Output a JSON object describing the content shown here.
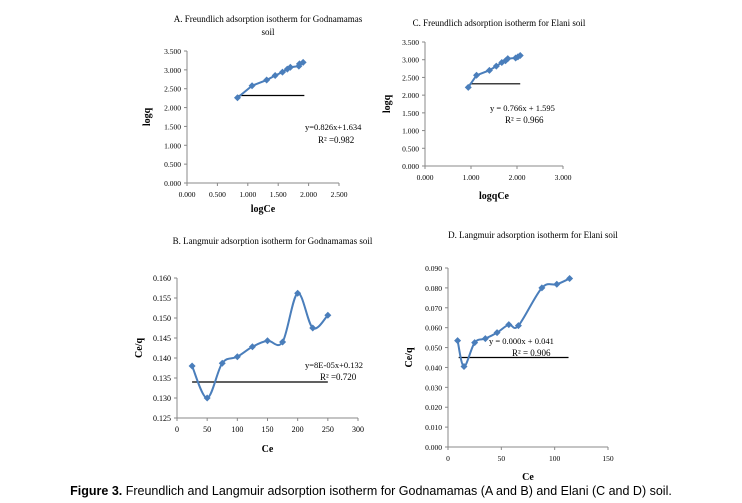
{
  "chart_data": [
    {
      "id": "A",
      "type": "line",
      "title": "A. Freundlich adsorption isotherm for Godnamamas",
      "title_line2": "soil",
      "xlabel": "logCe",
      "ylabel": "logq",
      "xlim": [
        0,
        2.5
      ],
      "ylim": [
        0,
        3.5
      ],
      "xticks": [
        "0.000",
        "0.500",
        "1.000",
        "1.500",
        "2.000",
        "2.500"
      ],
      "yticks": [
        "0.000",
        "0.500",
        "1.000",
        "1.500",
        "2.000",
        "2.500",
        "3.000",
        "3.500"
      ],
      "x": [
        0.83,
        1.07,
        1.31,
        1.45,
        1.57,
        1.65,
        1.7,
        1.84,
        1.85,
        1.91
      ],
      "y": [
        2.26,
        2.58,
        2.73,
        2.85,
        2.94,
        3.02,
        3.07,
        3.1,
        3.16,
        3.2
      ],
      "smooth": false,
      "hline": {
        "y": 2.32,
        "x": [
          0.85,
          1.93
        ]
      },
      "equation": "y=0.826x+1.634",
      "r2": "R² =0.982",
      "grid": false
    },
    {
      "id": "C",
      "type": "line",
      "title": "C. Freundlich adsorption isotherm for Elani soil",
      "title_line2": "",
      "xlabel": "logqCe",
      "ylabel": "logq",
      "xlim": [
        0,
        3
      ],
      "ylim": [
        0,
        3.5
      ],
      "xticks": [
        "0.000",
        "1.000",
        "2.000",
        "3.000"
      ],
      "yticks": [
        "0.000",
        "0.500",
        "1.000",
        "1.500",
        "2.000",
        "2.500",
        "3.000",
        "3.500"
      ],
      "x": [
        0.94,
        1.12,
        1.4,
        1.55,
        1.67,
        1.75,
        1.8,
        1.97,
        2.02,
        2.07
      ],
      "y": [
        2.22,
        2.56,
        2.7,
        2.82,
        2.92,
        2.97,
        3.03,
        3.05,
        3.08,
        3.12
      ],
      "smooth": false,
      "hline": {
        "y": 2.32,
        "x": [
          0.97,
          2.07
        ]
      },
      "equation": "y = 0.766x  + 1.595",
      "r2": "R² = 0.966",
      "grid": false
    },
    {
      "id": "B",
      "type": "line",
      "title": "B. Langmuir adsorption isotherm for Godnamamas soil",
      "title_line2": "",
      "xlabel": "Ce",
      "ylabel": "Ce/q",
      "xlim": [
        0,
        300
      ],
      "ylim": [
        0.125,
        0.16
      ],
      "xticks": [
        "0",
        "50",
        "100",
        "150",
        "200",
        "250",
        "300"
      ],
      "yticks": [
        "0.125",
        "0.130",
        "0.135",
        "0.140",
        "0.145",
        "0.150",
        "0.155",
        "0.160"
      ],
      "x": [
        25,
        50,
        75,
        100,
        125,
        150,
        175,
        200,
        225,
        250
      ],
      "y": [
        0.138,
        0.13,
        0.1387,
        0.1403,
        0.1428,
        0.1443,
        0.144,
        0.1562,
        0.1475,
        0.1507
      ],
      "smooth": true,
      "hline": {
        "y": 0.134,
        "x": [
          25,
          250
        ]
      },
      "equation": "y=8E-05x+0.132",
      "r2": "R² =0.720",
      "grid": false
    },
    {
      "id": "D",
      "type": "line",
      "title": "D. Langmuir adsorption isotherm for Elani soil",
      "title_line2": "",
      "xlabel": "Ce",
      "ylabel": "Ce/q",
      "xlim": [
        0,
        150
      ],
      "ylim": [
        0,
        0.09
      ],
      "xticks": [
        "0",
        "50",
        "100",
        "150"
      ],
      "yticks": [
        "0.000",
        "0.010",
        "0.020",
        "0.030",
        "0.040",
        "0.050",
        "0.060",
        "0.070",
        "0.080",
        "0.090"
      ],
      "x": [
        9,
        15,
        25,
        35,
        46,
        57,
        66,
        88,
        102,
        114
      ],
      "y": [
        0.0535,
        0.0405,
        0.0525,
        0.0545,
        0.0575,
        0.0615,
        0.061,
        0.08,
        0.0818,
        0.0847
      ],
      "smooth": true,
      "hline": {
        "y": 0.045,
        "x": [
          10,
          113
        ]
      },
      "equation": "y = 0.000x  + 0.041",
      "r2": "R² = 0.906",
      "grid": false
    }
  ],
  "colors": {
    "series": "#4a7ebb",
    "axis": "#888888",
    "text": "#000000"
  },
  "caption": {
    "label": "Figure 3.",
    "text": " Freundlich and Langmuir adsorption isotherm for Godnamamas (A and B) and Elani (C and D) soil."
  }
}
